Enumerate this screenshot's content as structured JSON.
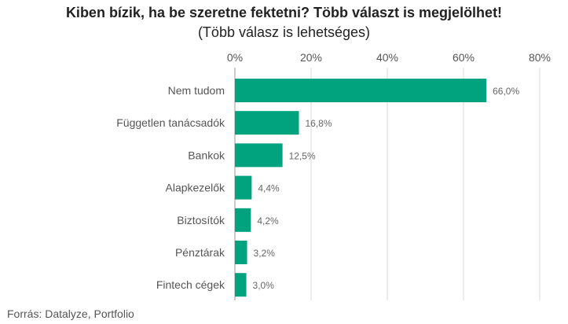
{
  "chart_data": {
    "type": "bar",
    "orientation": "horizontal",
    "title": "Kiben bízik, ha be szeretne fektetni? Több választ is megjelölhet!",
    "subtitle": "(Több válasz is lehetséges)",
    "categories": [
      "Nem tudom",
      "Független tanácsadók",
      "Bankok",
      "Alapkezelők",
      "Biztosítók",
      "Pénztárak",
      "Fintech cégek"
    ],
    "values": [
      66.0,
      16.8,
      12.5,
      4.4,
      4.2,
      3.2,
      3.0
    ],
    "value_labels": [
      "66,0%",
      "16,8%",
      "12,5%",
      "4,4%",
      "4,2%",
      "3,2%",
      "3,0%"
    ],
    "xlim": [
      0,
      80
    ],
    "xticks": [
      0,
      20,
      40,
      60,
      80
    ],
    "xtick_labels": [
      "0%",
      "20%",
      "40%",
      "60%",
      "80%"
    ],
    "axis_position": "top",
    "grid": true,
    "bar_color": "#00a37e",
    "source": "Forrás: Datalyze, Portfolio"
  }
}
